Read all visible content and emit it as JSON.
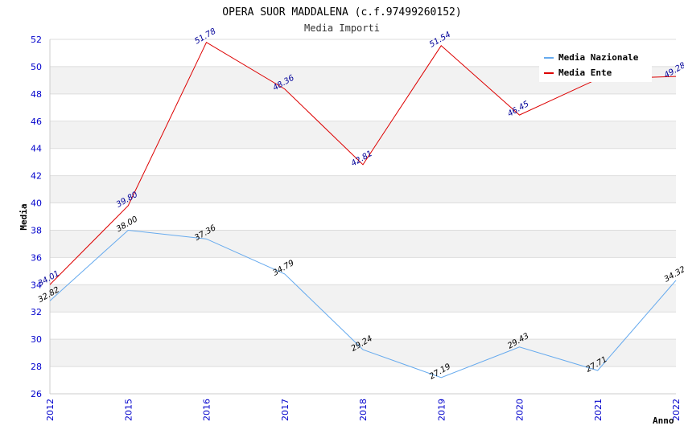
{
  "chart_data": {
    "type": "line",
    "title": "OPERA SUOR MADDALENA (c.f.97499260152)",
    "subtitle": "Media Importi",
    "xlabel": "Anno",
    "ylabel": "Media",
    "categories": [
      "2012",
      "2015",
      "2016",
      "2017",
      "2018",
      "2019",
      "2020",
      "2021",
      "2022"
    ],
    "ylim": [
      26,
      52
    ],
    "yticks": [
      26,
      28,
      30,
      32,
      34,
      36,
      38,
      40,
      42,
      44,
      46,
      48,
      50,
      52
    ],
    "ytick_labels": [
      "26",
      "28",
      "30",
      "32",
      "34",
      "36",
      "38",
      "40",
      "42",
      "44",
      "46",
      "48",
      "50",
      "52"
    ],
    "grid": true,
    "legend_position": "top-right",
    "series": [
      {
        "name": "Media Nazionale",
        "color": "#66aaee",
        "label_color": "#000000",
        "values": [
          32.82,
          38.0,
          37.36,
          34.79,
          29.24,
          27.19,
          29.43,
          27.71,
          34.32
        ],
        "labels": [
          "32.82",
          "38.00",
          "37.36",
          "34.79",
          "29.24",
          "27.19",
          "29.43",
          "27.71",
          "34.32"
        ]
      },
      {
        "name": "Media Ente",
        "color": "#dd0000",
        "label_color": "#000099",
        "values": [
          34.01,
          39.8,
          51.78,
          48.36,
          42.81,
          51.54,
          46.45,
          49.1,
          49.28
        ],
        "labels": [
          "34.01",
          "39.80",
          "51.78",
          "48.36",
          "42.81",
          "51.54",
          "46.45",
          "",
          "49.28"
        ]
      }
    ]
  }
}
